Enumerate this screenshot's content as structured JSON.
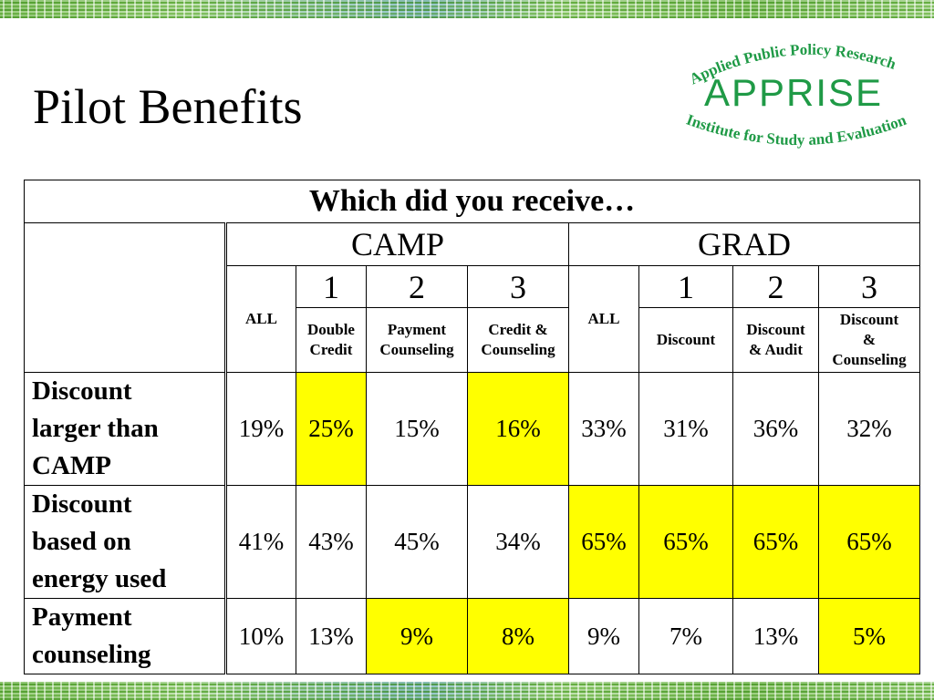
{
  "slide": {
    "title": "Pilot Benefits"
  },
  "logo": {
    "top_text": "Applied Public Policy Research",
    "name": "APPRISE",
    "bottom_text": "Institute for Study and Evaluation",
    "color": "#1f9a46"
  },
  "table": {
    "caption": "Which did you receive…",
    "programs": [
      "CAMP",
      "GRAD"
    ],
    "group_numbers": {
      "camp": [
        "1",
        "2",
        "3"
      ],
      "grad": [
        "1",
        "2",
        "3"
      ]
    },
    "all_label": "ALL",
    "sub_labels": {
      "camp": [
        [
          "Double",
          "Credit"
        ],
        [
          "Payment",
          "Counseling"
        ],
        [
          "Credit &",
          "Counseling"
        ]
      ],
      "grad": [
        [
          "Discount"
        ],
        [
          "Discount",
          "& Audit"
        ],
        [
          "Discount",
          "&",
          "Counseling"
        ]
      ]
    },
    "rows": [
      {
        "label": [
          "Discount",
          "larger than",
          "CAMP"
        ],
        "values": [
          "19%",
          "25%",
          "15%",
          "16%",
          "33%",
          "31%",
          "36%",
          "32%"
        ],
        "highlight": [
          false,
          true,
          false,
          true,
          false,
          false,
          false,
          false
        ]
      },
      {
        "label": [
          "Discount",
          "based on",
          "energy used"
        ],
        "values": [
          "41%",
          "43%",
          "45%",
          "34%",
          "65%",
          "65%",
          "65%",
          "65%"
        ],
        "highlight": [
          false,
          false,
          false,
          false,
          true,
          true,
          true,
          true
        ]
      },
      {
        "label": [
          "Payment",
          "counseling"
        ],
        "values": [
          "10%",
          "13%",
          "9%",
          "8%",
          "9%",
          "7%",
          "13%",
          "5%"
        ],
        "highlight": [
          false,
          false,
          true,
          true,
          false,
          false,
          false,
          true
        ]
      }
    ],
    "highlight_color": "#ffff00"
  }
}
